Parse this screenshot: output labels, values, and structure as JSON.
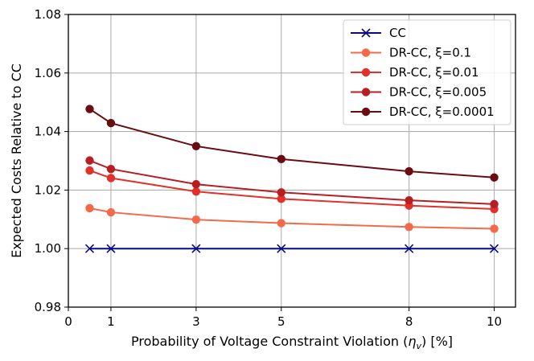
{
  "chart_data": {
    "type": "line",
    "xlabel": "Probability of Voltage Constraint Violation (",
    "xlabel_symbol": "η",
    "xlabel_sub": "v",
    "xlabel_tail": ") [%]",
    "ylabel": "Expected Costs Relative to CC",
    "xlim": [
      0,
      10.5
    ],
    "ylim": [
      0.98,
      1.08
    ],
    "xticks": [
      0,
      1,
      3,
      5,
      8,
      10
    ],
    "xtick_labels": [
      "0",
      "1",
      "3",
      "5",
      "8",
      "10"
    ],
    "yticks": [
      0.98,
      1.0,
      1.02,
      1.04,
      1.06,
      1.08
    ],
    "ytick_labels": [
      "0.98",
      "1.00",
      "1.02",
      "1.04",
      "1.06",
      "1.08"
    ],
    "grid": true,
    "legend_position": "top-right",
    "x": [
      0.5,
      1,
      3,
      5,
      8,
      10
    ],
    "series": [
      {
        "name": "CC",
        "marker": "x",
        "color": "#0a0a80",
        "values": [
          1.0,
          1.0,
          1.0,
          1.0,
          1.0,
          1.0
        ]
      },
      {
        "name": "DR-CC, ξ=0.1",
        "marker": "o",
        "color": "#f4694a",
        "values": [
          1.0138,
          1.0124,
          1.0099,
          1.0087,
          1.0074,
          1.0068
        ]
      },
      {
        "name": "DR-CC, ξ=0.01",
        "marker": "o",
        "color": "#e2302a",
        "values": [
          1.0267,
          1.0241,
          1.0195,
          1.017,
          1.0147,
          1.0135
        ]
      },
      {
        "name": "DR-CC, ξ=0.005",
        "marker": "o",
        "color": "#b81d22",
        "values": [
          1.0301,
          1.0272,
          1.022,
          1.0192,
          1.0165,
          1.0152
        ]
      },
      {
        "name": "DR-CC, ξ=0.0001",
        "marker": "o",
        "color": "#6b0b12",
        "values": [
          1.0477,
          1.0429,
          1.035,
          1.0306,
          1.0264,
          1.0243
        ]
      }
    ]
  }
}
